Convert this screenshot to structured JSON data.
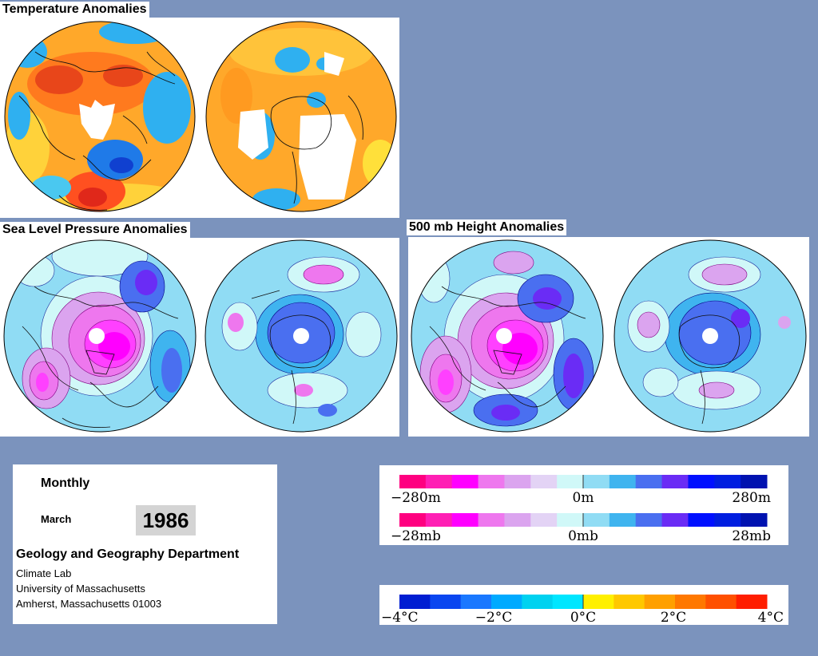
{
  "titles": {
    "temperature": "Temperature Anomalies",
    "slp": "Sea Level Pressure Anomalies",
    "height500": "500 mb Height Anomalies"
  },
  "info": {
    "period": "Monthly",
    "month": "March",
    "year": "1986",
    "department": "Geology and Geography Department",
    "lab": "Climate Lab",
    "university": "University of Massachusetts",
    "address": "Amherst, Massachusetts 01003"
  },
  "legends": {
    "height": {
      "min": "−280m",
      "mid": "0m",
      "max": "280m"
    },
    "pressure": {
      "min": "−28mb",
      "mid": "0mb",
      "max": "28mb"
    },
    "temperature": {
      "t1": "−4°C",
      "t2": "−2°C",
      "t3": "0°C",
      "t4": "2°C",
      "t5": "4°C"
    }
  },
  "colors": {
    "page_background": "#7b93bd",
    "height_pressure_scale": [
      "#ff0080",
      "#ff1fb4",
      "#ff00ff",
      "#ee77ee",
      "#dba4ef",
      "#e3d3f5",
      "#d0f8f8",
      "#90dcf4",
      "#3fb4ef",
      "#4a6ff0",
      "#6a2cf5",
      "#0010ff",
      "#001ee0",
      "#0012b0"
    ],
    "temperature_scale": [
      "#001ed2",
      "#0a46f0",
      "#1a78ff",
      "#00aaff",
      "#00d2f0",
      "#00e6ff",
      "#fff000",
      "#ffc800",
      "#ffa000",
      "#ff7800",
      "#ff5000",
      "#ff1e00"
    ]
  }
}
